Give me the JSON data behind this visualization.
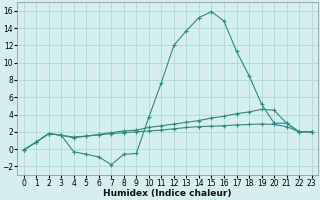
{
  "xlabel": "Humidex (Indice chaleur)",
  "x_values": [
    0,
    1,
    2,
    3,
    4,
    5,
    6,
    7,
    8,
    9,
    10,
    11,
    12,
    13,
    14,
    15,
    16,
    17,
    18,
    19,
    20,
    21,
    22,
    23
  ],
  "line1": [
    -0.1,
    0.8,
    1.8,
    1.6,
    -0.3,
    -0.6,
    -0.9,
    -1.8,
    -0.6,
    -0.5,
    3.7,
    7.7,
    12.0,
    13.7,
    15.2,
    15.9,
    14.8,
    11.3,
    8.5,
    5.2,
    3.0,
    3.0,
    2.0,
    2.0
  ],
  "line2": [
    -0.1,
    0.8,
    1.8,
    1.6,
    1.3,
    1.5,
    1.7,
    1.9,
    2.1,
    2.2,
    2.5,
    2.7,
    2.9,
    3.1,
    3.3,
    3.6,
    3.8,
    4.1,
    4.3,
    4.6,
    4.5,
    3.0,
    2.0,
    2.0
  ],
  "line3": [
    -0.1,
    0.8,
    1.8,
    1.6,
    1.4,
    1.5,
    1.65,
    1.8,
    1.9,
    2.0,
    2.1,
    2.2,
    2.35,
    2.5,
    2.6,
    2.65,
    2.7,
    2.8,
    2.85,
    2.9,
    2.85,
    2.6,
    2.0,
    2.0
  ],
  "line_color": "#2d8b80",
  "bg_color": "#d5eeee",
  "grid_color": "#a8d5d5",
  "ylim": [
    -3,
    17
  ],
  "xlim": [
    -0.5,
    23.5
  ],
  "yticks": [
    -2,
    0,
    2,
    4,
    6,
    8,
    10,
    12,
    14,
    16
  ],
  "xticks": [
    0,
    1,
    2,
    3,
    4,
    5,
    6,
    7,
    8,
    9,
    10,
    11,
    12,
    13,
    14,
    15,
    16,
    17,
    18,
    19,
    20,
    21,
    22,
    23
  ],
  "xlabel_fontsize": 6.5,
  "tick_fontsize": 5.5
}
